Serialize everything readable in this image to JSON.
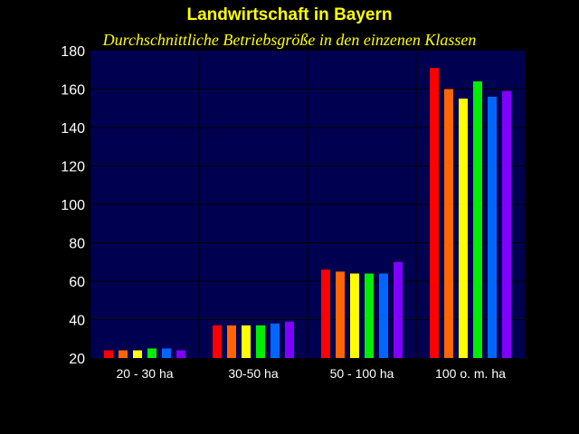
{
  "chart_data": {
    "type": "bar",
    "title": "Landwirtschaft in Bayern",
    "subtitle": "Durchschnittliche Betriebsgröße in den einzenen Klassen",
    "categories": [
      "20 - 30 ha",
      "30-50 ha",
      "50 - 100 ha",
      "100 o. m. ha"
    ],
    "series": [
      {
        "values": [
          24,
          37,
          66,
          171
        ]
      },
      {
        "values": [
          24,
          37,
          65,
          160
        ]
      },
      {
        "values": [
          24,
          37,
          64,
          155
        ]
      },
      {
        "values": [
          25,
          37,
          64,
          164
        ]
      },
      {
        "values": [
          25,
          38,
          64,
          156
        ]
      },
      {
        "values": [
          24,
          39,
          70,
          159
        ]
      }
    ],
    "ylim": [
      20,
      180
    ],
    "yticks": [
      "20",
      "40",
      "60",
      "80",
      "100",
      "120",
      "140",
      "160",
      "180"
    ],
    "grid": true,
    "legend": "none"
  },
  "colors": {
    "background": "#000000",
    "plot_area": "#000050",
    "grid": "#000000",
    "title": "#ffff00",
    "axis_text": "#ffffff",
    "series": [
      "#ff0000",
      "#ff6600",
      "#ffff00",
      "#00ee00",
      "#0066ff",
      "#8000ff"
    ]
  }
}
